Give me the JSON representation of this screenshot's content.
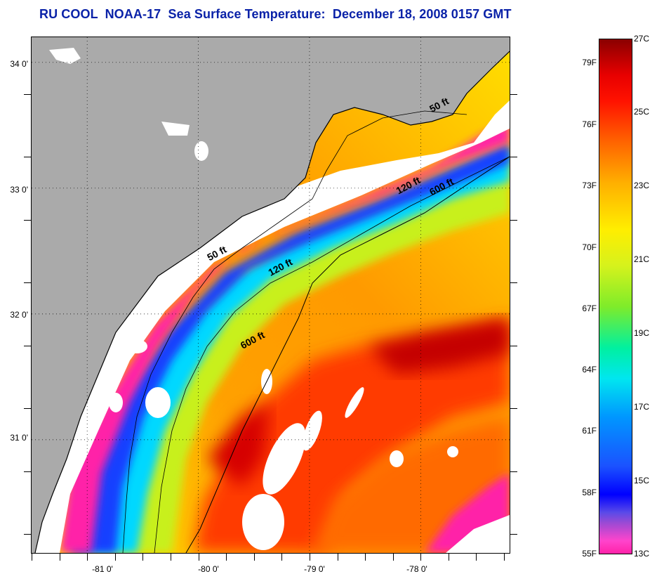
{
  "title": "RU COOL  NOAA-17  Sea Surface Temperature:  December 18, 2008 0157 GMT",
  "axes": {
    "y_ticks": [
      "34 0'",
      "33 0'",
      "32 0'",
      "31 0'"
    ],
    "x_ticks": [
      "-81 0'",
      "-80 0'",
      "-79 0'",
      "-78 0'"
    ],
    "lat_range": [
      30.1,
      34.2
    ],
    "lon_range": [
      -81.5,
      -77.2
    ]
  },
  "isobath_labels": [
    {
      "text": "50 ft",
      "lon": -77.9,
      "lat": 33.6
    },
    {
      "text": "50 ft",
      "lon": -79.9,
      "lat": 32.42
    },
    {
      "text": "120 ft",
      "lon": -78.2,
      "lat": 32.95
    },
    {
      "text": "120 ft",
      "lon": -79.35,
      "lat": 32.3
    },
    {
      "text": "600 ft",
      "lon": -77.9,
      "lat": 32.94
    },
    {
      "text": "600 ft",
      "lon": -79.6,
      "lat": 31.72
    }
  ],
  "colorbar": {
    "fahrenheit_labels": [
      "79F",
      "76F",
      "73F",
      "70F",
      "67F",
      "64F",
      "61F",
      "58F",
      "55F"
    ],
    "celsius_labels": [
      "27C",
      "25C",
      "23C",
      "21C",
      "19C",
      "17C",
      "15C",
      "13C"
    ],
    "range_c": [
      13,
      27
    ]
  },
  "colors": {
    "land": "#aaaaaa",
    "cloud": "#ffffff",
    "title": "#0a22a8"
  }
}
